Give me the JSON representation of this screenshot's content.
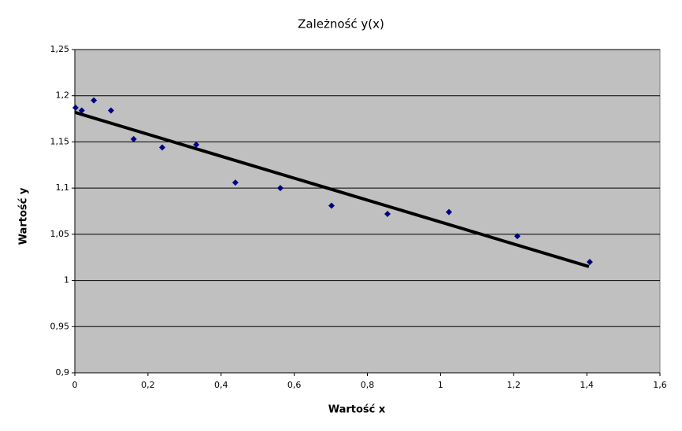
{
  "chart_data": {
    "type": "scatter",
    "title": "Zależność y(x)",
    "x_label": "Wartość x",
    "y_label": "Wartość y",
    "series": [
      {
        "color": "#000080",
        "x": [
          0.002,
          0.019,
          0.052,
          0.099,
          0.161,
          0.239,
          0.332,
          0.439,
          0.562,
          0.702,
          0.855,
          1.023,
          1.21,
          1.408
        ],
        "values": [
          1.187,
          1.184,
          1.195,
          1.184,
          1.153,
          1.144,
          1.147,
          1.106,
          1.1,
          1.081,
          1.072,
          1.074,
          1.048,
          1.02
        ]
      }
    ],
    "trendline": {
      "color": "#000000",
      "x": [
        0,
        1.406
      ],
      "values": [
        1.182,
        1.015
      ]
    },
    "xlim": [
      0,
      1.6
    ],
    "xticks": [
      0,
      {
        "value": 0.2,
        "label": "0,2"
      },
      {
        "value": 0.4,
        "label": "0,4"
      },
      {
        "value": 0.6,
        "label": "0,6"
      },
      {
        "value": 0.8,
        "label": "0,8"
      },
      1,
      {
        "value": 1.2,
        "label": "1,2"
      },
      {
        "value": 1.4,
        "label": "1,4"
      },
      {
        "value": 1.6,
        "label": "1,6"
      }
    ],
    "ylim": [
      0.9,
      1.25
    ],
    "yticks": [
      {
        "value": 0.9,
        "label": "0,9"
      },
      {
        "value": 0.95,
        "label": "0,95"
      },
      1,
      {
        "value": 1.05,
        "label": "1,05"
      },
      {
        "value": 1.1,
        "label": "1,1"
      },
      {
        "value": 1.15,
        "label": "1,15"
      },
      {
        "value": 1.2,
        "label": "1,2"
      },
      {
        "value": 1.25,
        "label": "1,25"
      }
    ],
    "grid": true,
    "plot_background": "#c0c0c0"
  }
}
